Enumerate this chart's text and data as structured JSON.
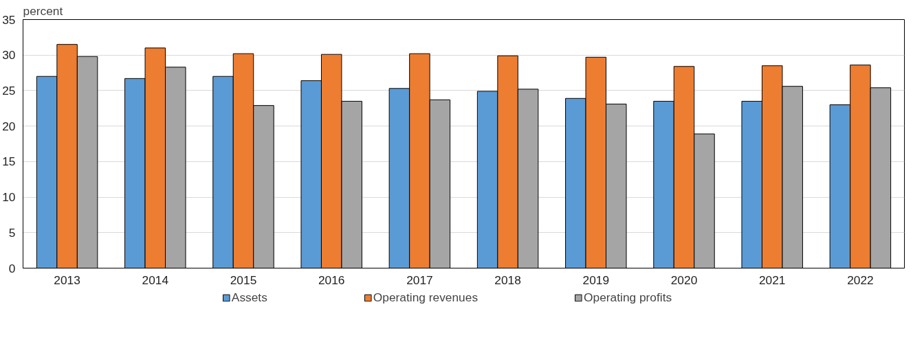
{
  "chart_data": {
    "type": "bar",
    "ylabel": "percent",
    "categories": [
      "2013",
      "2014",
      "2015",
      "2016",
      "2017",
      "2018",
      "2019",
      "2020",
      "2021",
      "2022"
    ],
    "series": [
      {
        "name": "Assets",
        "color": "#5b9bd5",
        "values": [
          27.0,
          26.7,
          27.0,
          26.4,
          25.3,
          24.9,
          23.9,
          23.5,
          23.5,
          23.0
        ]
      },
      {
        "name": "Operating revenues",
        "color": "#ed7d31",
        "values": [
          31.5,
          31.0,
          30.2,
          30.1,
          30.2,
          29.9,
          29.7,
          28.4,
          28.5,
          28.6
        ]
      },
      {
        "name": "Operating profits",
        "color": "#a5a5a5",
        "values": [
          29.8,
          28.3,
          22.9,
          23.5,
          23.7,
          25.2,
          23.1,
          18.9,
          25.6,
          25.4
        ]
      }
    ],
    "ylim": [
      0,
      35
    ],
    "yticks": [
      0,
      5,
      10,
      15,
      20,
      25,
      30,
      35
    ],
    "grid": "y",
    "legend": "bottom"
  }
}
